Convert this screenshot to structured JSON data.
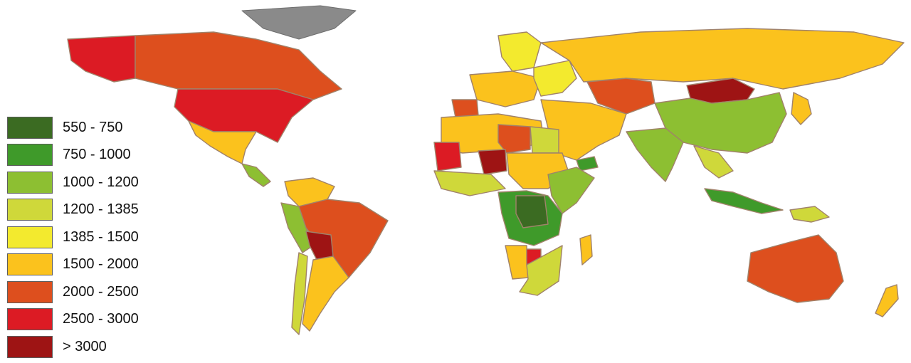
{
  "legend": {
    "items": [
      {
        "label": "550 - 750",
        "color": "#3b6b22"
      },
      {
        "label": "750 - 1000",
        "color": "#3f9a2a"
      },
      {
        "label": "1000 - 1200",
        "color": "#8dbf32"
      },
      {
        "label": "1200 - 1385",
        "color": "#cfd83a"
      },
      {
        "label": "1385 - 1500",
        "color": "#f3ea2e"
      },
      {
        "label": "1500 - 2000",
        "color": "#fbc21d"
      },
      {
        "label": "2000 - 2500",
        "color": "#dd4f1e"
      },
      {
        "label": "2500 - 3000",
        "color": "#dc1b24"
      },
      {
        "label": "> 3000",
        "color": "#9e1414"
      }
    ]
  },
  "regions": [
    {
      "name": "alaska",
      "class_index": 7
    },
    {
      "name": "canada",
      "class_index": 6
    },
    {
      "name": "greenland",
      "class_index": -1
    },
    {
      "name": "usa",
      "class_index": 7
    },
    {
      "name": "mexico",
      "class_index": 5
    },
    {
      "name": "central-america",
      "class_index": 2
    },
    {
      "name": "colombia-venezuela",
      "class_index": 5
    },
    {
      "name": "peru-ecuador",
      "class_index": 2
    },
    {
      "name": "brazil",
      "class_index": 6
    },
    {
      "name": "bolivia",
      "class_index": 8
    },
    {
      "name": "argentina-chile",
      "class_index": 5
    },
    {
      "name": "chile",
      "class_index": 3
    },
    {
      "name": "western-europe",
      "class_index": 5
    },
    {
      "name": "scandinavia",
      "class_index": 4
    },
    {
      "name": "iberia",
      "class_index": 6
    },
    {
      "name": "eastern-europe",
      "class_index": 4
    },
    {
      "name": "russia",
      "class_index": 5
    },
    {
      "name": "kazakhstan",
      "class_index": 6
    },
    {
      "name": "mongolia",
      "class_index": 8
    },
    {
      "name": "china",
      "class_index": 2
    },
    {
      "name": "middle-east",
      "class_index": 5
    },
    {
      "name": "yemen",
      "class_index": 1
    },
    {
      "name": "india",
      "class_index": 2
    },
    {
      "name": "southeast-asia",
      "class_index": 3
    },
    {
      "name": "indonesia",
      "class_index": 1
    },
    {
      "name": "japan",
      "class_index": 5
    },
    {
      "name": "north-africa",
      "class_index": 5
    },
    {
      "name": "libya",
      "class_index": 6
    },
    {
      "name": "egypt",
      "class_index": 3
    },
    {
      "name": "mauritania",
      "class_index": 7
    },
    {
      "name": "niger",
      "class_index": 8
    },
    {
      "name": "west-africa",
      "class_index": 3
    },
    {
      "name": "sudan",
      "class_index": 5
    },
    {
      "name": "east-africa",
      "class_index": 2
    },
    {
      "name": "central-africa",
      "class_index": 1
    },
    {
      "name": "congo-drc",
      "class_index": 0
    },
    {
      "name": "southern-africa",
      "class_index": 3
    },
    {
      "name": "namibia",
      "class_index": 5
    },
    {
      "name": "botswana",
      "class_index": 7
    },
    {
      "name": "madagascar",
      "class_index": 5
    },
    {
      "name": "australia",
      "class_index": 6
    },
    {
      "name": "new-zealand",
      "class_index": 5
    },
    {
      "name": "papua",
      "class_index": 3
    }
  ]
}
